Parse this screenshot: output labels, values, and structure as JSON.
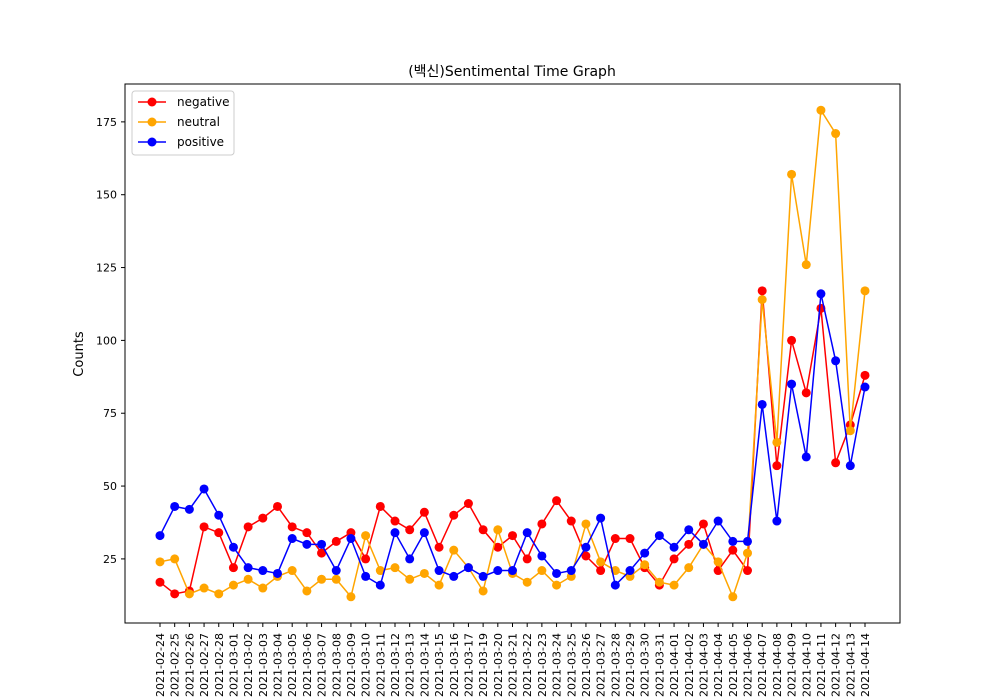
{
  "chart_data": {
    "type": "line",
    "title": "(백신)Sentimental Time Graph",
    "xlabel": "",
    "ylabel": "Counts",
    "ylim": [
      3,
      188
    ],
    "yticks": [
      25,
      50,
      75,
      100,
      125,
      150,
      175
    ],
    "grid": false,
    "legend_position": "top-left",
    "x": [
      "2021-02-24",
      "2021-02-25",
      "2021-02-26",
      "2021-02-27",
      "2021-02-28",
      "2021-03-01",
      "2021-03-02",
      "2021-03-03",
      "2021-03-04",
      "2021-03-05",
      "2021-03-06",
      "2021-03-07",
      "2021-03-08",
      "2021-03-09",
      "2021-03-10",
      "2021-03-11",
      "2021-03-12",
      "2021-03-13",
      "2021-03-14",
      "2021-03-15",
      "2021-03-16",
      "2021-03-17",
      "2021-03-19",
      "2021-03-20",
      "2021-03-21",
      "2021-03-22",
      "2021-03-23",
      "2021-03-24",
      "2021-03-25",
      "2021-03-26",
      "2021-03-27",
      "2021-03-28",
      "2021-03-29",
      "2021-03-30",
      "2021-03-31",
      "2021-04-01",
      "2021-04-02",
      "2021-04-03",
      "2021-04-04",
      "2021-04-05",
      "2021-04-06",
      "2021-04-07",
      "2021-04-08",
      "2021-04-09",
      "2021-04-10",
      "2021-04-11",
      "2021-04-12",
      "2021-04-13",
      "2021-04-14"
    ],
    "series": [
      {
        "name": "negative",
        "color": "#ff0000",
        "values": [
          17,
          13,
          14,
          36,
          34,
          22,
          36,
          39,
          43,
          36,
          34,
          27,
          31,
          34,
          25,
          43,
          38,
          35,
          41,
          29,
          40,
          44,
          35,
          29,
          33,
          25,
          37,
          45,
          38,
          26,
          21,
          32,
          32,
          22,
          16,
          25,
          30,
          37,
          21,
          28,
          21,
          117,
          57,
          100,
          82,
          111,
          58,
          71,
          88
        ]
      },
      {
        "name": "neutral",
        "color": "#ffa500",
        "values": [
          24,
          25,
          13,
          15,
          13,
          16,
          18,
          15,
          19,
          21,
          14,
          18,
          18,
          12,
          33,
          21,
          22,
          18,
          20,
          16,
          28,
          22,
          14,
          35,
          20,
          17,
          21,
          16,
          19,
          37,
          24,
          21,
          19,
          23,
          17,
          16,
          22,
          30,
          24,
          12,
          27,
          114,
          65,
          157,
          126,
          179,
          171,
          69,
          117
        ]
      },
      {
        "name": "positive",
        "color": "#0000ff",
        "values": [
          33,
          43,
          42,
          49,
          40,
          29,
          22,
          21,
          20,
          32,
          30,
          30,
          21,
          32,
          19,
          16,
          34,
          25,
          34,
          21,
          19,
          22,
          19,
          21,
          21,
          34,
          26,
          20,
          21,
          29,
          39,
          16,
          21,
          27,
          33,
          29,
          35,
          30,
          38,
          31,
          31,
          78,
          38,
          85,
          60,
          116,
          93,
          57,
          84
        ]
      }
    ]
  }
}
